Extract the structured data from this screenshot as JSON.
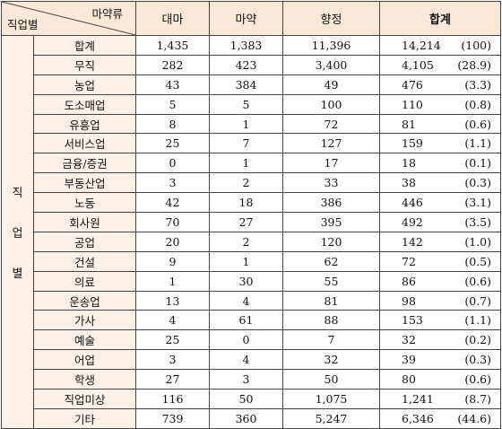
{
  "header": {
    "corner_top": "마약류",
    "corner_bottom": "직업별",
    "col_cannabis": "대마",
    "col_narcotics": "마약",
    "col_psychotropic": "향정",
    "col_total": "합계"
  },
  "side_label": [
    "직",
    "업",
    "별"
  ],
  "rows": [
    {
      "label": "합계",
      "cannabis": "1,435",
      "narcotics": "1,383",
      "psychotropic": "11,396",
      "total": "14,214",
      "pct": "(100)"
    },
    {
      "label": "무직",
      "cannabis": "282",
      "narcotics": "423",
      "psychotropic": "3,400",
      "total": "4,105",
      "pct": "(28.9)"
    },
    {
      "label": "농업",
      "cannabis": "43",
      "narcotics": "384",
      "psychotropic": "49",
      "total": "476",
      "pct": "(3.3)"
    },
    {
      "label": "도소매업",
      "cannabis": "5",
      "narcotics": "5",
      "psychotropic": "100",
      "total": "110",
      "pct": "(0.8)"
    },
    {
      "label": "유흥업",
      "cannabis": "8",
      "narcotics": "1",
      "psychotropic": "72",
      "total": "81",
      "pct": "(0.6)"
    },
    {
      "label": "서비스업",
      "cannabis": "25",
      "narcotics": "7",
      "psychotropic": "127",
      "total": "159",
      "pct": "(1.1)"
    },
    {
      "label": "금융/증권",
      "cannabis": "0",
      "narcotics": "1",
      "psychotropic": "17",
      "total": "18",
      "pct": "(0.1)"
    },
    {
      "label": "부동산업",
      "cannabis": "3",
      "narcotics": "2",
      "psychotropic": "33",
      "total": "38",
      "pct": "(0.3)"
    },
    {
      "label": "노동",
      "cannabis": "42",
      "narcotics": "18",
      "psychotropic": "386",
      "total": "446",
      "pct": "(3.1)"
    },
    {
      "label": "회사원",
      "cannabis": "70",
      "narcotics": "27",
      "psychotropic": "395",
      "total": "492",
      "pct": "(3.5)"
    },
    {
      "label": "공업",
      "cannabis": "20",
      "narcotics": "2",
      "psychotropic": "120",
      "total": "142",
      "pct": "(1.0)"
    },
    {
      "label": "건설",
      "cannabis": "9",
      "narcotics": "1",
      "psychotropic": "62",
      "total": "72",
      "pct": "(0.5)"
    },
    {
      "label": "의료",
      "cannabis": "1",
      "narcotics": "30",
      "psychotropic": "55",
      "total": "86",
      "pct": "(0.6)"
    },
    {
      "label": "운송업",
      "cannabis": "13",
      "narcotics": "4",
      "psychotropic": "81",
      "total": "98",
      "pct": "(0.7)"
    },
    {
      "label": "가사",
      "cannabis": "4",
      "narcotics": "61",
      "psychotropic": "88",
      "total": "153",
      "pct": "(1.1)"
    },
    {
      "label": "예술",
      "cannabis": "25",
      "narcotics": "0",
      "psychotropic": "7",
      "total": "32",
      "pct": "(0.2)"
    },
    {
      "label": "어업",
      "cannabis": "3",
      "narcotics": "4",
      "psychotropic": "32",
      "total": "39",
      "pct": "(0.3)"
    },
    {
      "label": "학생",
      "cannabis": "27",
      "narcotics": "3",
      "psychotropic": "50",
      "total": "80",
      "pct": "(0.6)"
    },
    {
      "label": "직업미상",
      "cannabis": "116",
      "narcotics": "50",
      "psychotropic": "1,075",
      "total": "1,241",
      "pct": "(8.7)"
    },
    {
      "label": "기타",
      "cannabis": "739",
      "narcotics": "360",
      "psychotropic": "5,247",
      "total": "6,346",
      "pct": "(44.6)"
    }
  ],
  "colors": {
    "header_bg": "#fbe8d6",
    "label_bg": "#fdf0e6",
    "border": "#444444"
  }
}
